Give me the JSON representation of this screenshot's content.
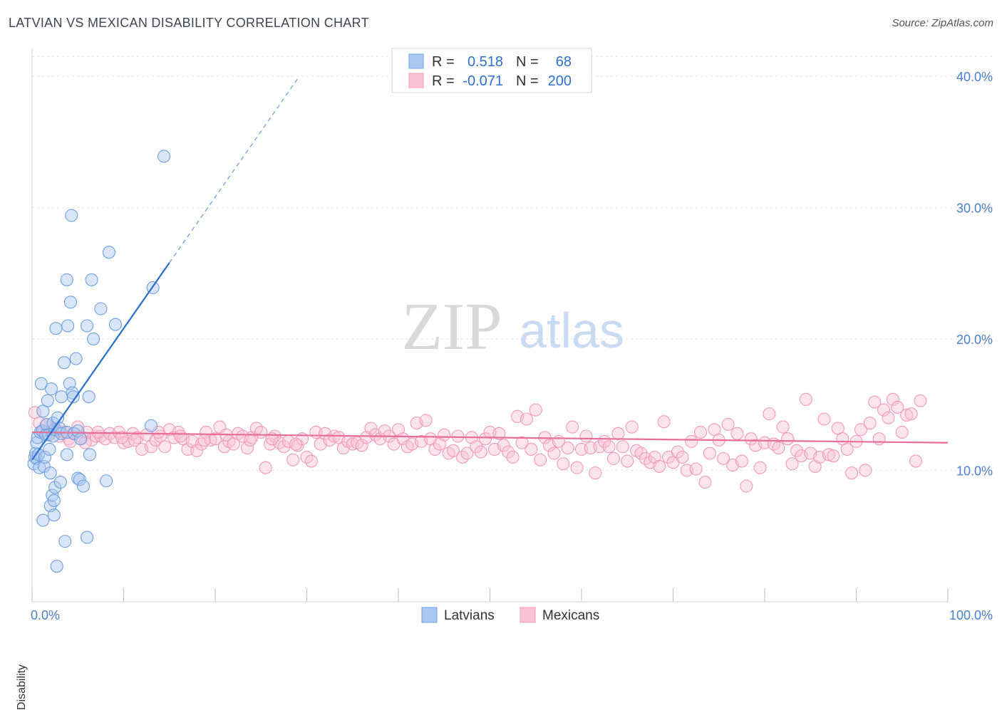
{
  "title": "LATVIAN VS MEXICAN DISABILITY CORRELATION CHART",
  "source": "Source: ZipAtlas.com",
  "watermark": {
    "zip": "ZIP",
    "atlas": "atlas"
  },
  "colors": {
    "latvians": "#6f9fe0",
    "latvians_fill": "#aac8f0",
    "latvians_line": "#2a6dd0",
    "mexicans": "#f29ab8",
    "mexicans_fill": "#f8c4d5",
    "mexicans_line": "#e86e98",
    "tick_label": "#4a7fd4"
  },
  "legend": {
    "row1": {
      "r_label": "R =",
      "r_value": "0.518",
      "n_label": "N =",
      "n_value": "68"
    },
    "row2": {
      "r_label": "R =",
      "r_value": "-0.071",
      "n_label": "N =",
      "n_value": "200"
    }
  },
  "chart_data": {
    "type": "scatter",
    "title": "LATVIAN VS MEXICAN DISABILITY CORRELATION CHART",
    "xlabel": "",
    "ylabel": "Disability",
    "xlim": [
      0,
      100
    ],
    "ylim": [
      0,
      42
    ],
    "x_tick_labels": [
      "0.0%",
      "100.0%"
    ],
    "y_ticks": [
      10,
      20,
      30,
      40
    ],
    "y_tick_labels": [
      "10.0%",
      "20.0%",
      "30.0%",
      "40.0%"
    ],
    "grid": true,
    "legend_position": "bottom-center",
    "series": [
      {
        "name": "Latvians",
        "trend": {
          "x0": 0,
          "y0": 10.8,
          "x1": 15,
          "y1": 25.8,
          "dashed_to_x": 29
        },
        "points": [
          [
            0.2,
            10.5
          ],
          [
            0.3,
            11.0
          ],
          [
            0.4,
            11.3
          ],
          [
            0.5,
            12.1
          ],
          [
            0.5,
            10.9
          ],
          [
            0.6,
            12.5
          ],
          [
            0.7,
            11.2
          ],
          [
            0.8,
            10.2
          ],
          [
            0.9,
            12.9
          ],
          [
            1.0,
            16.6
          ],
          [
            1.1,
            13.0
          ],
          [
            1.2,
            14.5
          ],
          [
            1.3,
            10.3
          ],
          [
            1.4,
            11.0
          ],
          [
            1.5,
            12.7
          ],
          [
            1.6,
            13.5
          ],
          [
            1.7,
            15.3
          ],
          [
            1.8,
            12.7
          ],
          [
            1.9,
            11.6
          ],
          [
            2.0,
            7.3
          ],
          [
            2.0,
            9.8
          ],
          [
            2.1,
            16.2
          ],
          [
            2.2,
            8.1
          ],
          [
            2.3,
            12.6
          ],
          [
            2.4,
            6.6
          ],
          [
            2.5,
            8.7
          ],
          [
            2.5,
            13.1
          ],
          [
            2.3,
            13.6
          ],
          [
            2.4,
            7.7
          ],
          [
            2.6,
            20.8
          ],
          [
            2.8,
            14.0
          ],
          [
            3.0,
            13.2
          ],
          [
            3.1,
            9.1
          ],
          [
            3.2,
            15.6
          ],
          [
            3.2,
            12.8
          ],
          [
            3.5,
            18.2
          ],
          [
            3.6,
            4.6
          ],
          [
            3.8,
            11.2
          ],
          [
            3.8,
            24.5
          ],
          [
            3.8,
            12.9
          ],
          [
            3.9,
            21.0
          ],
          [
            4.1,
            16.6
          ],
          [
            4.2,
            22.8
          ],
          [
            4.3,
            29.4
          ],
          [
            4.4,
            15.9
          ],
          [
            4.5,
            15.6
          ],
          [
            4.6,
            12.8
          ],
          [
            4.8,
            18.5
          ],
          [
            5.0,
            9.4
          ],
          [
            5.0,
            13.0
          ],
          [
            5.2,
            9.3
          ],
          [
            5.3,
            12.4
          ],
          [
            5.6,
            8.8
          ],
          [
            6.0,
            4.9
          ],
          [
            6.0,
            21.0
          ],
          [
            6.2,
            15.6
          ],
          [
            6.3,
            11.2
          ],
          [
            6.5,
            24.5
          ],
          [
            6.7,
            20.0
          ],
          [
            7.5,
            22.3
          ],
          [
            8.1,
            9.2
          ],
          [
            8.4,
            26.6
          ],
          [
            9.1,
            21.1
          ],
          [
            13.0,
            13.4
          ],
          [
            13.2,
            23.9
          ],
          [
            14.4,
            33.9
          ],
          [
            2.7,
            2.7
          ],
          [
            1.2,
            6.2
          ]
        ]
      },
      {
        "name": "Mexicans",
        "trend": {
          "x0": 0,
          "y0": 12.9,
          "x1": 100,
          "y1": 12.1
        },
        "points": [
          [
            0.3,
            14.4
          ],
          [
            0.8,
            13.6
          ],
          [
            1.2,
            13.0
          ],
          [
            1.8,
            12.7
          ],
          [
            2.5,
            13.2
          ],
          [
            3.0,
            12.6
          ],
          [
            3.5,
            12.9
          ],
          [
            4.0,
            12.4
          ],
          [
            4.5,
            12.8
          ],
          [
            5.0,
            13.3
          ],
          [
            5.5,
            12.5
          ],
          [
            6.0,
            12.9
          ],
          [
            6.5,
            12.3
          ],
          [
            7.0,
            12.6
          ],
          [
            7.5,
            12.6
          ],
          [
            8.0,
            12.4
          ],
          [
            8.5,
            12.8
          ],
          [
            9.0,
            12.5
          ],
          [
            9.5,
            12.9
          ],
          [
            10.0,
            12.1
          ],
          [
            10.5,
            12.2
          ],
          [
            11.0,
            12.8
          ],
          [
            11.5,
            12.5
          ],
          [
            12.0,
            11.6
          ],
          [
            12.5,
            12.7
          ],
          [
            13.0,
            11.8
          ],
          [
            13.5,
            12.3
          ],
          [
            14.0,
            12.6
          ],
          [
            14.5,
            11.8
          ],
          [
            15.0,
            13.1
          ],
          [
            15.5,
            12.5
          ],
          [
            16.0,
            12.9
          ],
          [
            16.5,
            12.4
          ],
          [
            17.0,
            11.6
          ],
          [
            17.5,
            12.2
          ],
          [
            18.0,
            11.5
          ],
          [
            18.5,
            12.0
          ],
          [
            19.0,
            12.9
          ],
          [
            19.5,
            12.3
          ],
          [
            20.0,
            12.4
          ],
          [
            20.5,
            13.3
          ],
          [
            21.0,
            11.8
          ],
          [
            21.5,
            12.2
          ],
          [
            22.0,
            12.0
          ],
          [
            22.5,
            12.8
          ],
          [
            23.0,
            12.6
          ],
          [
            23.5,
            11.7
          ],
          [
            24.0,
            12.5
          ],
          [
            24.5,
            13.2
          ],
          [
            25.0,
            12.9
          ],
          [
            25.5,
            10.2
          ],
          [
            26.0,
            12.0
          ],
          [
            26.5,
            12.6
          ],
          [
            27.0,
            12.1
          ],
          [
            27.5,
            11.8
          ],
          [
            28.0,
            12.2
          ],
          [
            28.5,
            10.8
          ],
          [
            29.0,
            11.9
          ],
          [
            29.5,
            12.4
          ],
          [
            30.0,
            11.0
          ],
          [
            30.5,
            10.7
          ],
          [
            31.0,
            12.9
          ],
          [
            31.5,
            12.0
          ],
          [
            32.0,
            12.8
          ],
          [
            32.5,
            12.3
          ],
          [
            33.0,
            12.6
          ],
          [
            33.5,
            12.5
          ],
          [
            34.0,
            11.7
          ],
          [
            34.5,
            12.2
          ],
          [
            35.0,
            12.0
          ],
          [
            35.5,
            12.1
          ],
          [
            36.0,
            11.9
          ],
          [
            36.5,
            12.5
          ],
          [
            37.0,
            13.2
          ],
          [
            37.5,
            12.7
          ],
          [
            38.0,
            12.4
          ],
          [
            38.5,
            13.0
          ],
          [
            39.0,
            12.6
          ],
          [
            39.5,
            12.0
          ],
          [
            40.0,
            13.1
          ],
          [
            40.5,
            12.4
          ],
          [
            41.0,
            11.8
          ],
          [
            41.5,
            12.0
          ],
          [
            42.0,
            13.6
          ],
          [
            42.5,
            12.2
          ],
          [
            43.0,
            13.8
          ],
          [
            43.5,
            12.4
          ],
          [
            44.0,
            11.6
          ],
          [
            44.5,
            12.0
          ],
          [
            45.0,
            12.7
          ],
          [
            45.5,
            11.3
          ],
          [
            46.0,
            11.5
          ],
          [
            46.5,
            12.6
          ],
          [
            47.0,
            11.0
          ],
          [
            47.5,
            11.3
          ],
          [
            48.0,
            12.5
          ],
          [
            48.5,
            11.8
          ],
          [
            49.0,
            11.4
          ],
          [
            49.5,
            12.4
          ],
          [
            50.0,
            12.9
          ],
          [
            50.5,
            11.6
          ],
          [
            51.0,
            12.8
          ],
          [
            51.5,
            11.9
          ],
          [
            52.0,
            11.4
          ],
          [
            52.5,
            11.0
          ],
          [
            53.0,
            14.1
          ],
          [
            53.5,
            12.1
          ],
          [
            54.0,
            13.9
          ],
          [
            54.5,
            11.6
          ],
          [
            55.0,
            14.6
          ],
          [
            55.5,
            10.8
          ],
          [
            56.0,
            12.5
          ],
          [
            56.5,
            11.9
          ],
          [
            57.0,
            11.3
          ],
          [
            57.5,
            12.2
          ],
          [
            58.0,
            10.5
          ],
          [
            58.5,
            11.7
          ],
          [
            59.0,
            13.3
          ],
          [
            59.5,
            10.2
          ],
          [
            60.0,
            11.6
          ],
          [
            60.5,
            12.6
          ],
          [
            61.0,
            11.7
          ],
          [
            61.5,
            9.8
          ],
          [
            62.0,
            11.8
          ],
          [
            62.5,
            12.2
          ],
          [
            63.0,
            11.8
          ],
          [
            63.5,
            10.9
          ],
          [
            64.0,
            12.8
          ],
          [
            64.5,
            11.8
          ],
          [
            65.0,
            10.7
          ],
          [
            65.5,
            13.3
          ],
          [
            66.0,
            11.5
          ],
          [
            66.5,
            11.3
          ],
          [
            67.0,
            10.9
          ],
          [
            67.5,
            10.6
          ],
          [
            68.0,
            11.0
          ],
          [
            68.5,
            10.3
          ],
          [
            69.0,
            13.7
          ],
          [
            69.5,
            11.0
          ],
          [
            70.0,
            10.6
          ],
          [
            70.5,
            11.4
          ],
          [
            71.0,
            11.0
          ],
          [
            71.5,
            10.0
          ],
          [
            72.0,
            12.2
          ],
          [
            72.5,
            10.1
          ],
          [
            73.0,
            12.9
          ],
          [
            73.5,
            9.1
          ],
          [
            74.0,
            11.3
          ],
          [
            74.5,
            13.1
          ],
          [
            75.0,
            12.3
          ],
          [
            75.5,
            10.9
          ],
          [
            76.0,
            13.5
          ],
          [
            76.5,
            10.4
          ],
          [
            77.0,
            12.8
          ],
          [
            77.5,
            10.7
          ],
          [
            78.0,
            8.8
          ],
          [
            78.5,
            12.4
          ],
          [
            79.0,
            11.9
          ],
          [
            79.5,
            10.2
          ],
          [
            80.0,
            12.1
          ],
          [
            80.5,
            14.3
          ],
          [
            81.0,
            12.0
          ],
          [
            81.5,
            11.7
          ],
          [
            82.0,
            13.3
          ],
          [
            82.5,
            12.4
          ],
          [
            83.0,
            10.5
          ],
          [
            83.5,
            11.5
          ],
          [
            84.0,
            11.1
          ],
          [
            84.5,
            15.4
          ],
          [
            85.0,
            11.3
          ],
          [
            85.5,
            10.3
          ],
          [
            86.0,
            11.0
          ],
          [
            86.5,
            13.9
          ],
          [
            87.0,
            11.2
          ],
          [
            87.5,
            11.1
          ],
          [
            88.0,
            13.2
          ],
          [
            88.5,
            12.4
          ],
          [
            89.0,
            11.6
          ],
          [
            89.5,
            9.8
          ],
          [
            90.0,
            12.2
          ],
          [
            90.5,
            13.1
          ],
          [
            91.0,
            10.0
          ],
          [
            91.5,
            13.6
          ],
          [
            92.0,
            15.2
          ],
          [
            92.5,
            12.4
          ],
          [
            93.0,
            14.6
          ],
          [
            93.5,
            14.0
          ],
          [
            94.0,
            15.4
          ],
          [
            94.5,
            14.8
          ],
          [
            95.0,
            12.9
          ],
          [
            95.5,
            14.2
          ],
          [
            96.0,
            14.3
          ],
          [
            96.5,
            10.7
          ],
          [
            97.0,
            15.3
          ],
          [
            1.5,
            13.4
          ],
          [
            2.8,
            13.0
          ],
          [
            4.2,
            12.2
          ],
          [
            5.8,
            12.1
          ],
          [
            7.2,
            12.9
          ],
          [
            9.8,
            12.5
          ],
          [
            11.2,
            12.3
          ],
          [
            13.8,
            12.9
          ],
          [
            16.2,
            12.6
          ],
          [
            18.8,
            12.3
          ],
          [
            21.2,
            12.7
          ],
          [
            23.8,
            12.3
          ],
          [
            26.2,
            12.4
          ],
          [
            28.8,
            12.0
          ]
        ]
      }
    ]
  },
  "bottom_legend": {
    "latvians": "Latvians",
    "mexicans": "Mexicans"
  }
}
